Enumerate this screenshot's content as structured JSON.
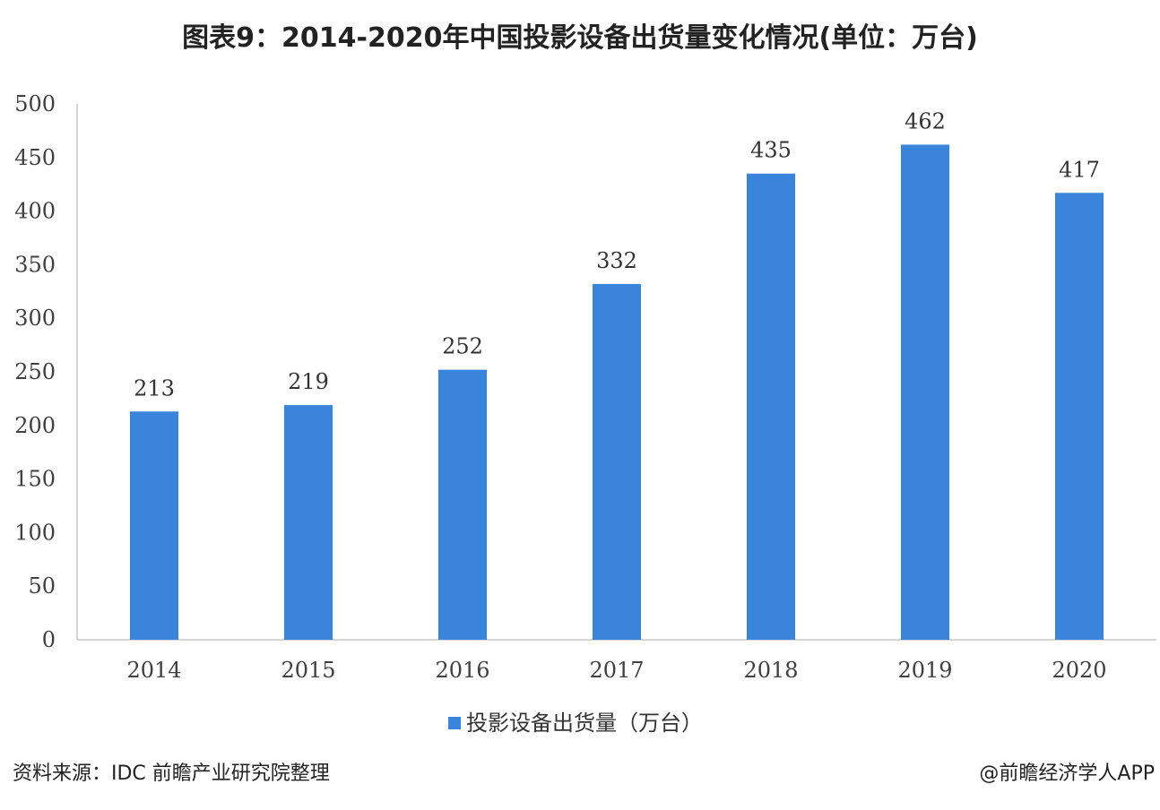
{
  "page": {
    "title": "图表9：2014-2020年中国投影设备出货量变化情况(单位：万台)",
    "source": "资料来源：IDC 前瞻产业研究院整理",
    "credit": "@前瞻经济学人APP"
  },
  "chart_data": {
    "type": "bar",
    "title": "图表9：2014-2020年中国投影设备出货量变化情况(单位：万台)",
    "categories": [
      "2014",
      "2015",
      "2016",
      "2017",
      "2018",
      "2019",
      "2020"
    ],
    "series": [
      {
        "name": "投影设备出货量（万台）",
        "values": [
          213,
          219,
          252,
          332,
          435,
          462,
          417
        ],
        "color": "#3b84db"
      }
    ],
    "ylim": [
      0,
      500
    ],
    "yticks": [
      0,
      50,
      100,
      150,
      200,
      250,
      300,
      350,
      400,
      450,
      500
    ],
    "grid": false,
    "legend": "bottom"
  }
}
